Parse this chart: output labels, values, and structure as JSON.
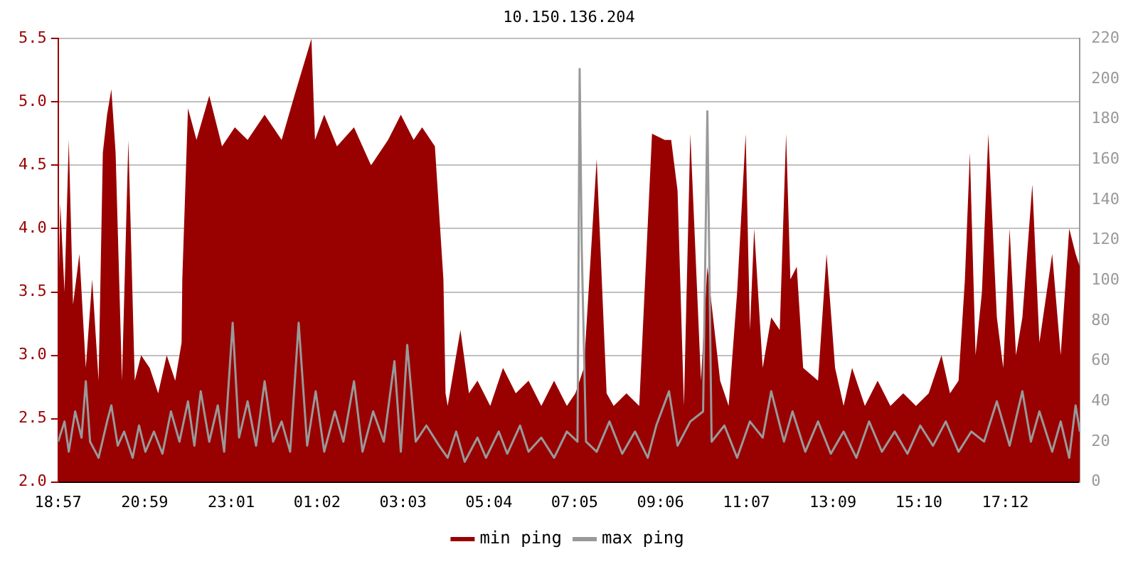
{
  "chart_data": {
    "type": "area",
    "title": "10.150.136.204",
    "legend": "bottom",
    "grid": "y",
    "marker": "none",
    "xlim": [
      "--01-01T18:57",
      "--01-02T18:57"
    ],
    "xticks": [
      {
        "value": "--01-01T18:57",
        "label": "18:57"
      },
      {
        "value": "--01-01T20:59",
        "label": "20:59"
      },
      {
        "value": "--01-01T23:01",
        "label": "23:01"
      },
      {
        "value": "--01-02T01:02",
        "label": "01:02"
      },
      {
        "value": "--01-02T03:03",
        "label": "03:03"
      },
      {
        "value": "--01-02T05:04",
        "label": "05:04"
      },
      {
        "value": "--01-02T07:05",
        "label": "07:05"
      },
      {
        "value": "--01-02T09:06",
        "label": "09:06"
      },
      {
        "value": "--01-02T11:07",
        "label": "11:07"
      },
      {
        "value": "--01-02T13:09",
        "label": "13:09"
      },
      {
        "value": "--01-02T15:10",
        "label": "15:10"
      },
      {
        "value": "--01-02T17:12",
        "label": "17:12"
      }
    ],
    "ylim": [
      2.0,
      5.5
    ],
    "yticks": [
      {
        "value": 2,
        "label": "2.0"
      },
      2.5,
      {
        "value": 3,
        "label": "3.0"
      },
      3.5,
      {
        "value": 4,
        "label": "4.0"
      },
      4.5,
      {
        "value": 5,
        "label": "5.0"
      },
      5.5
    ],
    "y2lim": [
      0,
      220
    ],
    "y2ticks": [
      0,
      20,
      40,
      60,
      80,
      100,
      120,
      140,
      160,
      180,
      200,
      220
    ],
    "series": [
      {
        "name": "min ping",
        "color": "#990000",
        "x": [
          "--01-01T18:57",
          "--01-01T19:00",
          "--01-01T19:06",
          "--01-01T19:12",
          "--01-01T19:18",
          "--01-01T19:27",
          "--01-01T19:36",
          "--01-01T19:45",
          "--01-01T19:54",
          "--01-01T20:00",
          "--01-01T20:06",
          "--01-01T20:12",
          "--01-01T20:18",
          "--01-01T20:27",
          "--01-01T20:36",
          "--01-01T20:45",
          "--01-01T20:54",
          "--01-01T21:06",
          "--01-01T21:18",
          "--01-01T21:30",
          "--01-01T21:42",
          "--01-01T21:51",
          "--01-01T21:52",
          "--01-01T22:00",
          "--01-01T22:12",
          "--01-01T22:30",
          "--01-01T22:48",
          "--01-01T23:06",
          "--01-01T23:24",
          "--01-01T23:48",
          "--01-02T00:12",
          "--01-02T00:30",
          "--01-02T00:54",
          "--01-02T00:59",
          "--01-02T01:12",
          "--01-02T01:30",
          "--01-02T01:54",
          "--01-02T02:18",
          "--01-02T02:42",
          "--01-02T03:00",
          "--01-02T03:18",
          "--01-02T03:30",
          "--01-02T03:48",
          "--01-02T04:00",
          "--01-02T04:03",
          "--01-02T04:06",
          "--01-02T04:24",
          "--01-02T04:36",
          "--01-02T04:48",
          "--01-02T05:06",
          "--01-02T05:24",
          "--01-02T05:42",
          "--01-02T06:00",
          "--01-02T06:18",
          "--01-02T06:36",
          "--01-02T06:54",
          "--01-02T07:06",
          "--01-02T07:18",
          "--01-02T07:36",
          "--01-02T07:50",
          "--01-02T08:00",
          "--01-02T08:18",
          "--01-02T08:36",
          "--01-02T08:54",
          "--01-02T09:12",
          "--01-02T09:21",
          "--01-02T09:30",
          "--01-02T09:39",
          "--01-02T09:48",
          "--01-02T10:03",
          "--01-02T10:12",
          "--01-02T10:30",
          "--01-02T10:42",
          "--01-02T10:54",
          "--01-02T11:06",
          "--01-02T11:12",
          "--01-02T11:18",
          "--01-02T11:30",
          "--01-02T11:42",
          "--01-02T11:54",
          "--01-02T12:03",
          "--01-02T12:09",
          "--01-02T12:18",
          "--01-02T12:27",
          "--01-02T12:48",
          "--01-02T13:00",
          "--01-02T13:12",
          "--01-02T13:24",
          "--01-02T13:36",
          "--01-02T13:54",
          "--01-02T14:12",
          "--01-02T14:30",
          "--01-02T14:48",
          "--01-02T15:06",
          "--01-02T15:24",
          "--01-02T15:42",
          "--01-02T15:54",
          "--01-02T16:06",
          "--01-02T16:15",
          "--01-02T16:22",
          "--01-02T16:30",
          "--01-02T16:39",
          "--01-02T16:48",
          "--01-02T17:00",
          "--01-02T17:09",
          "--01-02T17:18",
          "--01-02T17:27",
          "--01-02T17:36",
          "--01-02T17:50",
          "--01-02T18:00",
          "--01-02T18:18",
          "--01-02T18:30",
          "--01-02T18:42",
          "--01-02T18:51",
          "--01-02T18:57"
        ],
        "values": [
          3.3,
          4.2,
          3.5,
          4.7,
          3.4,
          3.8,
          2.9,
          3.6,
          2.8,
          4.6,
          4.9,
          5.1,
          4.6,
          2.8,
          4.7,
          2.8,
          3.0,
          2.9,
          2.7,
          3.0,
          2.8,
          3.1,
          3.6,
          4.95,
          4.7,
          5.05,
          4.65,
          4.8,
          4.7,
          4.9,
          4.7,
          5.05,
          5.5,
          4.7,
          4.9,
          4.65,
          4.8,
          4.5,
          4.7,
          4.9,
          4.7,
          4.8,
          4.65,
          3.6,
          2.7,
          2.6,
          3.2,
          2.7,
          2.8,
          2.6,
          2.9,
          2.7,
          2.8,
          2.6,
          2.8,
          2.6,
          2.7,
          2.9,
          4.55,
          2.7,
          2.6,
          2.7,
          2.6,
          4.75,
          4.7,
          4.7,
          4.3,
          2.6,
          4.75,
          2.8,
          3.7,
          2.8,
          2.6,
          3.5,
          4.75,
          3.2,
          4.0,
          2.9,
          3.3,
          3.2,
          4.75,
          3.6,
          3.7,
          2.9,
          2.8,
          3.8,
          2.9,
          2.6,
          2.9,
          2.6,
          2.8,
          2.6,
          2.7,
          2.6,
          2.7,
          3.0,
          2.7,
          2.8,
          3.6,
          4.6,
          3.0,
          3.5,
          4.75,
          3.3,
          2.9,
          4.0,
          3.0,
          3.3,
          4.35,
          3.1,
          3.8,
          3.0,
          4.0,
          3.8,
          3.7
        ]
      },
      {
        "name": "max ping",
        "type": "line",
        "axis": "y2",
        "color": "#999999",
        "x": [
          "--01-01T18:57",
          "--01-01T19:06",
          "--01-01T19:12",
          "--01-01T19:21",
          "--01-01T19:30",
          "--01-01T19:36",
          "--01-01T19:42",
          "--01-01T19:54",
          "--01-01T20:06",
          "--01-01T20:12",
          "--01-01T20:21",
          "--01-01T20:30",
          "--01-01T20:42",
          "--01-01T20:51",
          "--01-01T21:00",
          "--01-01T21:12",
          "--01-01T21:24",
          "--01-01T21:36",
          "--01-01T21:48",
          "--01-01T22:00",
          "--01-01T22:09",
          "--01-01T22:18",
          "--01-01T22:30",
          "--01-01T22:42",
          "--01-01T22:51",
          "--01-01T23:03",
          "--01-01T23:12",
          "--01-01T23:24",
          "--01-01T23:36",
          "--01-01T23:48",
          "--01-02T00:00",
          "--01-02T00:12",
          "--01-02T00:24",
          "--01-02T00:36",
          "--01-02T00:48",
          "--01-02T01:00",
          "--01-02T01:12",
          "--01-02T01:27",
          "--01-02T01:39",
          "--01-02T01:54",
          "--01-02T02:06",
          "--01-02T02:21",
          "--01-02T02:36",
          "--01-02T02:51",
          "--01-02T03:00",
          "--01-02T03:09",
          "--01-02T03:21",
          "--01-02T03:36",
          "--01-02T03:54",
          "--01-02T04:06",
          "--01-02T04:18",
          "--01-02T04:30",
          "--01-02T04:48",
          "--01-02T05:00",
          "--01-02T05:18",
          "--01-02T05:30",
          "--01-02T05:48",
          "--01-02T06:00",
          "--01-02T06:18",
          "--01-02T06:36",
          "--01-02T06:54",
          "--01-02T07:09",
          "--01-02T07:12",
          "--01-02T07:15",
          "--01-02T07:21",
          "--01-02T07:36",
          "--01-02T07:54",
          "--01-02T08:12",
          "--01-02T08:30",
          "--01-02T08:48",
          "--01-02T09:00",
          "--01-02T09:18",
          "--01-02T09:30",
          "--01-02T09:48",
          "--01-02T10:06",
          "--01-02T10:12",
          "--01-02T10:18",
          "--01-02T10:36",
          "--01-02T10:54",
          "--01-02T11:12",
          "--01-02T11:30",
          "--01-02T11:42",
          "--01-02T12:00",
          "--01-02T12:12",
          "--01-02T12:30",
          "--01-02T12:48",
          "--01-02T13:06",
          "--01-02T13:24",
          "--01-02T13:42",
          "--01-02T14:00",
          "--01-02T14:18",
          "--01-02T14:36",
          "--01-02T14:54",
          "--01-02T15:12",
          "--01-02T15:30",
          "--01-02T15:48",
          "--01-02T16:06",
          "--01-02T16:24",
          "--01-02T16:42",
          "--01-02T17:00",
          "--01-02T17:18",
          "--01-02T17:36",
          "--01-02T17:48",
          "--01-02T18:00",
          "--01-02T18:18",
          "--01-02T18:30",
          "--01-02T18:42",
          "--01-02T18:51",
          "--01-02T18:57"
        ],
        "values": [
          20,
          30,
          15,
          35,
          22,
          50,
          20,
          12,
          30,
          38,
          18,
          25,
          12,
          28,
          15,
          25,
          14,
          35,
          20,
          40,
          18,
          45,
          20,
          38,
          15,
          79,
          22,
          40,
          18,
          50,
          20,
          30,
          15,
          79,
          18,
          45,
          15,
          35,
          20,
          50,
          15,
          35,
          20,
          60,
          15,
          68,
          20,
          28,
          18,
          12,
          25,
          10,
          22,
          12,
          25,
          14,
          28,
          15,
          22,
          12,
          25,
          20,
          205,
          115,
          20,
          15,
          30,
          14,
          25,
          12,
          28,
          45,
          18,
          30,
          35,
          184,
          20,
          28,
          12,
          30,
          22,
          45,
          20,
          35,
          15,
          30,
          14,
          25,
          12,
          30,
          15,
          25,
          14,
          28,
          18,
          30,
          15,
          25,
          20,
          40,
          18,
          45,
          20,
          35,
          15,
          30,
          12,
          38,
          25
        ]
      }
    ]
  }
}
